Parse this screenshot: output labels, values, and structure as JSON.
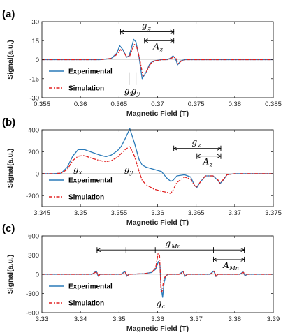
{
  "chart_data": [
    {
      "type": "line",
      "panel_label": "(a)",
      "xlabel": "Magnetic Field (T)",
      "ylabel": "Signal(a.u.)",
      "xlim": [
        0.355,
        0.385
      ],
      "ylim": [
        -30,
        30
      ],
      "xticks": [
        0.355,
        0.36,
        0.365,
        0.37,
        0.375,
        0.38,
        0.385
      ],
      "xtick_labels": [
        "0.355",
        "0.36",
        "0.365",
        "0.37",
        "0.375",
        "0.38",
        "0.385"
      ],
      "yticks": [
        -30,
        -15,
        0,
        15,
        30
      ],
      "ytick_labels": [
        "-30",
        "-15",
        "0",
        "15",
        "30"
      ],
      "legend_position": "bottom-left",
      "series": [
        {
          "name": "Experimental",
          "color": "#2a7ab9",
          "dash": "solid",
          "x": [
            0.355,
            0.3625,
            0.364,
            0.3647,
            0.3651,
            0.3655,
            0.366,
            0.3663,
            0.3666,
            0.3669,
            0.3672,
            0.3676,
            0.368,
            0.3685,
            0.369,
            0.3695,
            0.3705,
            0.3712,
            0.3716,
            0.372,
            0.3723,
            0.3726,
            0.373,
            0.3735,
            0.385
          ],
          "y": [
            0,
            0,
            1,
            5,
            11,
            8,
            2,
            3,
            9,
            16,
            14,
            2,
            -15,
            -10,
            -3,
            -1,
            0,
            0,
            1,
            3,
            1,
            -4,
            -1,
            0,
            0
          ]
        },
        {
          "name": "Simulation",
          "color": "#e02020",
          "dash": "dashdot",
          "x": [
            0.355,
            0.3625,
            0.364,
            0.3647,
            0.3652,
            0.3656,
            0.366,
            0.3664,
            0.3667,
            0.367,
            0.3673,
            0.3677,
            0.3681,
            0.3686,
            0.3691,
            0.3696,
            0.3706,
            0.3713,
            0.3717,
            0.3721,
            0.3724,
            0.3727,
            0.3731,
            0.3736,
            0.385
          ],
          "y": [
            0,
            0,
            1,
            4,
            8,
            6,
            2,
            3,
            8,
            12,
            10,
            0,
            -13,
            -9,
            -3,
            -1,
            0,
            0,
            1,
            2,
            1,
            -3,
            -1,
            0,
            0
          ]
        }
      ],
      "annotations": [
        {
          "kind": "span",
          "label_base": "g",
          "label_sub": "z",
          "x_start": 0.3652,
          "x_end": 0.3721,
          "y": 22
        },
        {
          "kind": "span",
          "label_base": "A",
          "label_sub": "z",
          "x_start": 0.3683,
          "x_end": 0.3721,
          "y": 15
        },
        {
          "kind": "marker",
          "label_base": "g",
          "label_sub": "x",
          "x": 0.3663,
          "y_top": -10,
          "y_bottom": -20
        },
        {
          "kind": "marker",
          "label_base": "g",
          "label_sub": "y",
          "x": 0.3672,
          "y_top": -10,
          "y_bottom": -20
        }
      ]
    },
    {
      "type": "line",
      "panel_label": "(b)",
      "xlabel": "Magnetic Field (T)",
      "ylabel": "Signal(a.u.)",
      "xlim": [
        3.345,
        3.375
      ],
      "ylim": [
        -300,
        400
      ],
      "xticks": [
        3.345,
        3.35,
        3.355,
        3.36,
        3.365,
        3.37,
        3.375
      ],
      "xtick_labels": [
        "3.345",
        "3.35",
        "3.355",
        "3.36",
        "3.365",
        "3.37",
        "3.375"
      ],
      "yticks": [
        -200,
        0,
        200,
        400
      ],
      "ytick_labels": [
        "-200",
        "0",
        "200",
        "400"
      ],
      "legend_position": "bottom-left",
      "series": [
        {
          "name": "Experimental",
          "color": "#2a7ab9",
          "dash": "solid",
          "x": [
            3.345,
            3.3465,
            3.3475,
            3.3483,
            3.349,
            3.3497,
            3.3505,
            3.3515,
            3.3525,
            3.3533,
            3.354,
            3.3548,
            3.3553,
            3.3558,
            3.3564,
            3.357,
            3.3576,
            3.358,
            3.3585,
            3.3595,
            3.3605,
            3.3612,
            3.3617,
            3.362,
            3.3625,
            3.3635,
            3.3643,
            3.3648,
            3.3651,
            3.3655,
            3.3662,
            3.3672,
            3.3678,
            3.3681,
            3.3685,
            3.369,
            3.37,
            3.375
          ],
          "y": [
            0,
            0,
            5,
            60,
            160,
            220,
            220,
            195,
            170,
            155,
            170,
            210,
            250,
            320,
            410,
            280,
            130,
            80,
            60,
            40,
            20,
            -40,
            -70,
            -60,
            -20,
            -10,
            -30,
            -110,
            -125,
            -80,
            -20,
            -20,
            -60,
            -90,
            -60,
            -10,
            0,
            0
          ]
        },
        {
          "name": "Simulation",
          "color": "#e02020",
          "dash": "dashdot",
          "x": [
            3.345,
            3.3465,
            3.3475,
            3.3483,
            3.349,
            3.3497,
            3.3505,
            3.3515,
            3.3525,
            3.3533,
            3.354,
            3.3548,
            3.3553,
            3.3558,
            3.3564,
            3.357,
            3.3576,
            3.358,
            3.3585,
            3.3595,
            3.3605,
            3.3612,
            3.3617,
            3.362,
            3.3625,
            3.3635,
            3.3643,
            3.3648,
            3.3651,
            3.3655,
            3.3662,
            3.3672,
            3.3678,
            3.3681,
            3.3685,
            3.369,
            3.37,
            3.375
          ],
          "y": [
            0,
            0,
            5,
            40,
            120,
            160,
            165,
            140,
            120,
            110,
            120,
            150,
            185,
            220,
            250,
            160,
            20,
            -60,
            -100,
            -140,
            -160,
            -170,
            -180,
            -150,
            -80,
            -30,
            -50,
            -110,
            -120,
            -80,
            -20,
            -20,
            -55,
            -85,
            -55,
            -10,
            0,
            0
          ]
        }
      ],
      "annotations": [
        {
          "kind": "span",
          "label_base": "g",
          "label_sub": "z",
          "x_start": 3.3621,
          "x_end": 3.3682,
          "y": 230
        },
        {
          "kind": "span",
          "label_base": "A",
          "label_sub": "z",
          "x_start": 3.3651,
          "x_end": 3.3682,
          "y": 160
        },
        {
          "kind": "label",
          "label_base": "g",
          "label_sub": "x",
          "x": 3.3497,
          "y": 15
        },
        {
          "kind": "label",
          "label_base": "g",
          "label_sub": "y",
          "x": 3.3563,
          "y": 15
        }
      ]
    },
    {
      "type": "line",
      "panel_label": "(c)",
      "xlabel": "Magnetic Field (T)",
      "ylabel": "Signal(a.u.)",
      "xlim": [
        3.33,
        3.39
      ],
      "ylim": [
        -600,
        600
      ],
      "xticks": [
        3.33,
        3.34,
        3.35,
        3.36,
        3.37,
        3.38,
        3.39
      ],
      "xtick_labels": [
        "3.33",
        "3.34",
        "3.35",
        "3.36",
        "3.37",
        "3.38",
        "3.39"
      ],
      "yticks": [
        -600,
        -300,
        0,
        300,
        600
      ],
      "ytick_labels": [
        "-600",
        "-300",
        "0",
        "300",
        "600"
      ],
      "legend_position": "bottom-left",
      "series": [
        {
          "name": "Experimental",
          "color": "#2a7ab9",
          "dash": "solid",
          "x": [
            3.33,
            3.343,
            3.3441,
            3.3446,
            3.345,
            3.3505,
            3.3515,
            3.352,
            3.3525,
            3.3565,
            3.3585,
            3.3595,
            3.3602,
            3.3606,
            3.3609,
            3.3613,
            3.3617,
            3.3622,
            3.3628,
            3.3655,
            3.3666,
            3.3671,
            3.3676,
            3.3735,
            3.3746,
            3.3751,
            3.3756,
            3.3812,
            3.3822,
            3.3827,
            3.3832,
            3.39
          ],
          "y": [
            0,
            0,
            50,
            -30,
            0,
            0,
            45,
            -30,
            0,
            10,
            30,
            80,
            200,
            160,
            -200,
            -360,
            -120,
            -20,
            0,
            0,
            45,
            -30,
            0,
            0,
            50,
            -35,
            0,
            0,
            35,
            -25,
            0,
            0
          ]
        },
        {
          "name": "Simulation",
          "color": "#e02020",
          "dash": "dashdot",
          "x": [
            3.33,
            3.343,
            3.3442,
            3.3447,
            3.3451,
            3.3506,
            3.3516,
            3.3521,
            3.3526,
            3.3565,
            3.3585,
            3.3595,
            3.3601,
            3.3605,
            3.3609,
            3.3612,
            3.3616,
            3.3621,
            3.3628,
            3.3656,
            3.3667,
            3.3672,
            3.3677,
            3.3736,
            3.3747,
            3.3752,
            3.3757,
            3.3813,
            3.3823,
            3.3828,
            3.3833,
            3.39
          ],
          "y": [
            0,
            0,
            40,
            -25,
            0,
            0,
            35,
            -25,
            0,
            10,
            30,
            100,
            320,
            300,
            -280,
            -260,
            -80,
            -20,
            0,
            0,
            35,
            -25,
            0,
            0,
            40,
            -30,
            0,
            0,
            30,
            -20,
            0,
            0
          ]
        }
      ],
      "annotations": [
        {
          "kind": "span",
          "label_base": "g",
          "label_sub": "Mn",
          "x_start": 3.3443,
          "x_end": 3.3825,
          "y": 380,
          "ticks": [
            3.3443,
            3.3518,
            3.3594,
            3.3669,
            3.3745,
            3.3825
          ]
        },
        {
          "kind": "span",
          "label_base": "A",
          "label_sub": "Mn",
          "x_start": 3.3745,
          "x_end": 3.3825,
          "y": 230
        },
        {
          "kind": "label",
          "label_base": "g",
          "label_sub": "c",
          "x": 3.3609,
          "y": -500
        }
      ]
    }
  ]
}
